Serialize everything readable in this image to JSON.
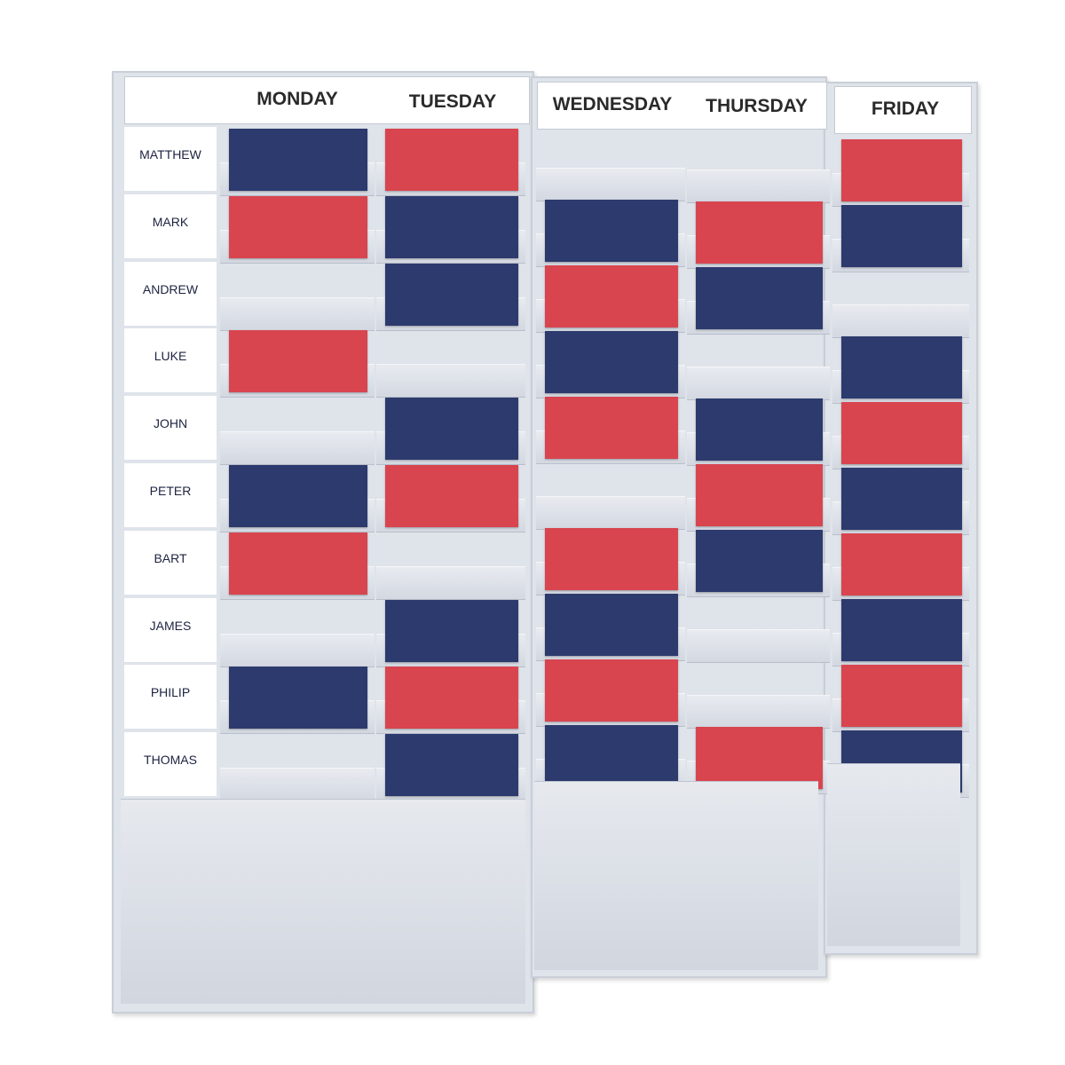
{
  "days": [
    "MONDAY",
    "TUESDAY",
    "WEDNESDAY",
    "THURSDAY",
    "FRIDAY"
  ],
  "colors": {
    "blue": "#2c3a6d",
    "red": "#d8454f",
    "board": "#dfe3ea"
  },
  "rows": [
    {
      "name": "MATTHEW",
      "cards": [
        "blue",
        "red",
        "empty",
        "empty",
        "red"
      ]
    },
    {
      "name": "MARK",
      "cards": [
        "red",
        "blue",
        "blue",
        "red",
        "blue"
      ]
    },
    {
      "name": "ANDREW",
      "cards": [
        "empty",
        "blue",
        "red",
        "blue",
        "empty"
      ]
    },
    {
      "name": "LUKE",
      "cards": [
        "red",
        "empty",
        "blue",
        "empty",
        "blue"
      ]
    },
    {
      "name": "JOHN",
      "cards": [
        "empty",
        "blue",
        "red",
        "blue",
        "red"
      ]
    },
    {
      "name": "PETER",
      "cards": [
        "blue",
        "red",
        "empty",
        "red",
        "blue"
      ]
    },
    {
      "name": "BART",
      "cards": [
        "red",
        "empty",
        "red",
        "blue",
        "red"
      ]
    },
    {
      "name": "JAMES",
      "cards": [
        "empty",
        "blue",
        "blue",
        "empty",
        "blue"
      ]
    },
    {
      "name": "PHILIP",
      "cards": [
        "blue",
        "red",
        "red",
        "empty",
        "red"
      ]
    },
    {
      "name": "THOMAS",
      "cards": [
        "empty",
        "blue",
        "blue",
        "red",
        "blue"
      ]
    }
  ]
}
